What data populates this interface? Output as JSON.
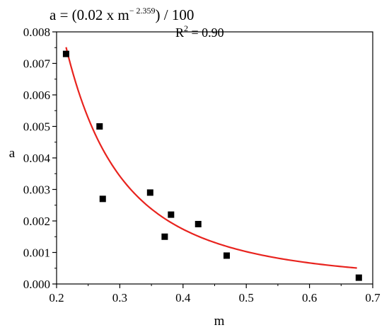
{
  "chart_data": {
    "type": "scatter",
    "xlabel": "m",
    "ylabel": "a",
    "xlim": [
      0.2,
      0.7
    ],
    "ylim": [
      0.0,
      0.008
    ],
    "x_ticks": [
      "0.2",
      "0.3",
      "0.4",
      "0.5",
      "0.6",
      "0.7"
    ],
    "y_ticks": [
      "0.000",
      "0.001",
      "0.002",
      "0.003",
      "0.004",
      "0.005",
      "0.006",
      "0.007",
      "0.008"
    ],
    "grid": false,
    "series": [
      {
        "kind": "points",
        "marker": "square",
        "color": "#000000",
        "points": [
          {
            "x": 0.215,
            "y": 0.0073
          },
          {
            "x": 0.268,
            "y": 0.005
          },
          {
            "x": 0.273,
            "y": 0.0027
          },
          {
            "x": 0.348,
            "y": 0.0029
          },
          {
            "x": 0.371,
            "y": 0.0015
          },
          {
            "x": 0.381,
            "y": 0.0022
          },
          {
            "x": 0.424,
            "y": 0.0019
          },
          {
            "x": 0.469,
            "y": 0.0009
          },
          {
            "x": 0.678,
            "y": 0.0002
          }
        ]
      },
      {
        "kind": "fit",
        "color": "#e8231e",
        "coefficient": 0.02,
        "exponent": -2.359,
        "divisor": 100,
        "x_range": [
          0.215,
          0.675
        ]
      }
    ],
    "annotations": {
      "equation_prefix": "a = (0.02 x m",
      "equation_exponent": "− 2.359",
      "equation_suffix": ") / 100",
      "r2_prefix": "R",
      "r2_sup": "2",
      "r2_suffix": " = 0.90"
    }
  }
}
